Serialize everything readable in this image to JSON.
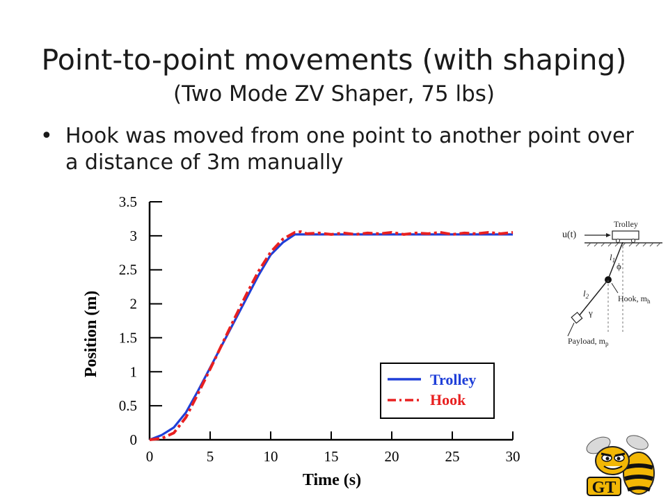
{
  "slide": {
    "title": "Point-to-point movements (with shaping)",
    "subtitle": "(Two Mode ZV Shaper, 75 lbs)",
    "bullet": "Hook was moved from one point to another point over a distance of 3m manually"
  },
  "chart_data": {
    "type": "line",
    "title": "",
    "xlabel": "Time (s)",
    "ylabel": "Position (m)",
    "xlim": [
      0,
      30
    ],
    "ylim": [
      0,
      3.5
    ],
    "xticks": [
      0,
      5,
      10,
      15,
      20,
      25,
      30
    ],
    "yticks": [
      0,
      0.5,
      1,
      1.5,
      2,
      2.5,
      3,
      3.5
    ],
    "grid": false,
    "legend_position": "bottom-right",
    "series": [
      {
        "name": "Trolley",
        "color": "#1f3fd8",
        "style": "solid",
        "x": [
          0,
          1,
          2,
          3,
          4,
          5,
          6,
          7,
          8,
          9,
          10,
          11,
          12,
          13,
          15,
          20,
          25,
          30
        ],
        "y": [
          0,
          0.07,
          0.18,
          0.4,
          0.72,
          1.06,
          1.4,
          1.74,
          2.08,
          2.42,
          2.72,
          2.9,
          3.02,
          3.02,
          3.02,
          3.02,
          3.02,
          3.02
        ]
      },
      {
        "name": "Hook",
        "color": "#e82020",
        "style": "dashed",
        "x": [
          0,
          1,
          2,
          3,
          4,
          5,
          6,
          7,
          8,
          9,
          10,
          11,
          12,
          12.5,
          13,
          14,
          15,
          16,
          17,
          18,
          19,
          20,
          21,
          22,
          23,
          24,
          25,
          26,
          27,
          28,
          29,
          30
        ],
        "y": [
          0,
          0.02,
          0.1,
          0.33,
          0.68,
          1.04,
          1.41,
          1.78,
          2.14,
          2.48,
          2.76,
          2.95,
          3.05,
          3.06,
          3.03,
          3.04,
          3.02,
          3.04,
          3.02,
          3.04,
          3.03,
          3.05,
          3.02,
          3.04,
          3.03,
          3.05,
          3.02,
          3.04,
          3.03,
          3.05,
          3.03,
          3.05
        ]
      }
    ]
  },
  "diagram": {
    "input_label": "u(t)",
    "trolley_label": "Trolley",
    "l1_label": "l",
    "l1_sub": "1",
    "l2_label": "l",
    "l2_sub": "2",
    "phi_label": "ϕ",
    "gamma_label": "γ",
    "hook_label": "Hook, m",
    "hook_sub": "h",
    "payload_label": "Payload, m",
    "payload_sub": "p"
  },
  "logo": {
    "text": "GT",
    "name": "yellow-jacket-logo"
  }
}
